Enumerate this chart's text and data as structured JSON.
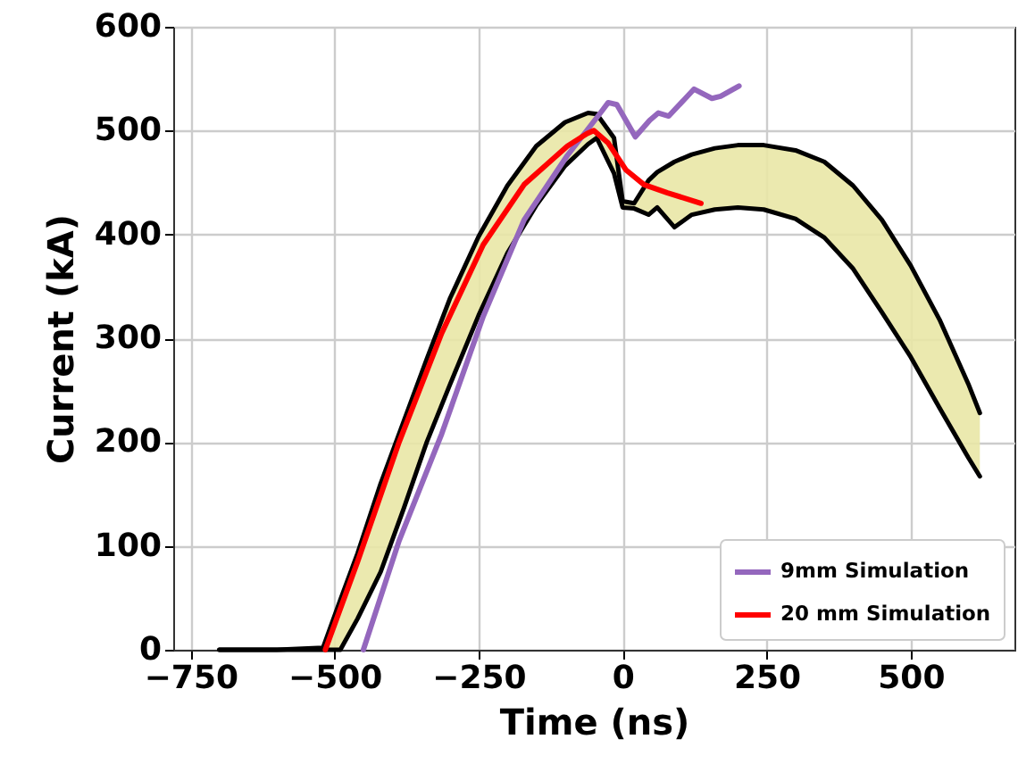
{
  "chart_data": {
    "type": "line",
    "xlabel": "Time (ns)",
    "ylabel": "Current (kA)",
    "xlim": [
      -780,
      680
    ],
    "xticks": [
      -750,
      -500,
      -250,
      0,
      250,
      500
    ],
    "ylim": [
      0,
      600
    ],
    "yticks": [
      0,
      100,
      200,
      300,
      400,
      500,
      600
    ],
    "grid": true,
    "legend": "bottom right",
    "line_style": "solid",
    "marker": "none",
    "series": [
      {
        "color": "#000000",
        "x": [
          -700,
          -600,
          -520,
          -490,
          -460,
          -420,
          -380,
          -340,
          -300,
          -250,
          -200,
          -150,
          -100,
          -60,
          -45,
          -15,
          0,
          20,
          45,
          60,
          90,
          120,
          160,
          200,
          245,
          300,
          350,
          400,
          450,
          500,
          550,
          600,
          620
        ],
        "values": [
          0,
          0,
          2,
          48,
          93,
          160,
          220,
          280,
          338,
          398,
          447,
          485,
          508,
          517,
          516,
          493,
          432,
          430,
          452,
          460,
          470,
          477,
          483,
          486,
          486,
          481,
          470,
          447,
          414,
          370,
          318,
          256,
          228
        ],
        "lower": [
          0,
          0,
          0,
          0,
          30,
          75,
          136,
          200,
          255,
          322,
          382,
          428,
          466,
          487,
          493,
          459,
          426,
          425,
          419,
          426,
          407,
          419,
          424,
          426,
          424,
          415,
          397,
          367,
          325,
          282,
          233,
          185,
          167
        ],
        "upper": [
          0,
          0,
          2,
          48,
          93,
          160,
          220,
          280,
          338,
          398,
          447,
          485,
          508,
          517,
          516,
          493,
          432,
          430,
          452,
          460,
          470,
          477,
          483,
          486,
          486,
          481,
          470,
          447,
          414,
          370,
          318,
          256,
          228
        ]
      },
      {
        "color": "#000000",
        "x": [
          -700,
          -600,
          -520,
          -490,
          -460,
          -420,
          -380,
          -340,
          -300,
          -250,
          -200,
          -150,
          -100,
          -60,
          -45,
          -15,
          0,
          20,
          45,
          60,
          90,
          120,
          160,
          200,
          245,
          300,
          350,
          400,
          450,
          500,
          550,
          600,
          620
        ],
        "values": [
          0,
          0,
          0,
          0,
          30,
          75,
          136,
          200,
          255,
          322,
          382,
          428,
          466,
          487,
          493,
          459,
          426,
          425,
          419,
          426,
          407,
          419,
          424,
          426,
          424,
          415,
          397,
          367,
          325,
          282,
          233,
          185,
          167
        ]
      },
      {
        "name": "9mm Simulation",
        "color": "#9467bd",
        "x": [
          -450,
          -388,
          -314,
          -242,
          -171,
          -96,
          -40,
          -25,
          -10,
          22,
          47,
          62,
          80,
          124,
          155,
          170,
          202
        ],
        "values": [
          0,
          105,
          208,
          321,
          414,
          476,
          516,
          527,
          525,
          494,
          510,
          517,
          514,
          540,
          531,
          533,
          543
        ]
      },
      {
        "name": "20 mm Simulation",
        "color": "#ff0000",
        "x": [
          -516,
          -460,
          -388,
          -314,
          -242,
          -171,
          -96,
          -62,
          -50,
          -25,
          6,
          37,
          78,
          136
        ],
        "values": [
          0,
          85,
          200,
          305,
          390,
          448,
          485,
          497,
          500,
          488,
          462,
          448,
          440,
          430
        ]
      }
    ]
  }
}
